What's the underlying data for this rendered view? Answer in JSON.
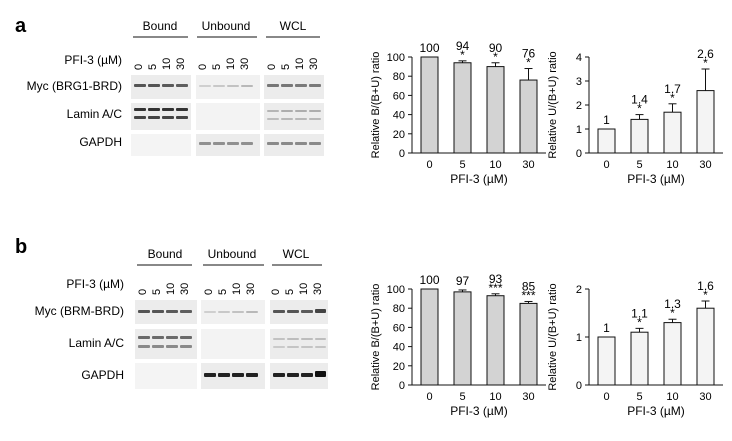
{
  "figure": {
    "panels": [
      {
        "letter": "a",
        "blot": {
          "groups": [
            "Bound",
            "Unbound",
            "WCL"
          ],
          "treatment_label": "PFI-3 (µM)",
          "doses": [
            "0",
            "5",
            "10",
            "30"
          ],
          "rows": [
            "Myc (BRG1-BRD)",
            "Lamin A/C",
            "GAPDH"
          ]
        }
      },
      {
        "letter": "b",
        "blot": {
          "groups": [
            "Bound",
            "Unbound",
            "WCL"
          ],
          "treatment_label": "PFI-3 (µM)",
          "doses": [
            "0",
            "5",
            "10",
            "30"
          ],
          "rows": [
            "Myc (BRM-BRD)",
            "Lamin A/C",
            "GAPDH"
          ]
        }
      }
    ]
  },
  "chart_data": [
    {
      "type": "bar",
      "categories": [
        "0",
        "5",
        "10",
        "30"
      ],
      "values": [
        100,
        94,
        90,
        76
      ],
      "errors": [
        0,
        2,
        4,
        12
      ],
      "value_labels": [
        "100",
        "94",
        "90",
        "76"
      ],
      "significance": [
        "",
        "*",
        "*",
        "*"
      ],
      "xlabel": "PFI-3 (µM)",
      "ylabel": "Relative  B/(B+U) ratio",
      "yticks": [
        "0",
        "20",
        "40",
        "60",
        "80",
        "100"
      ],
      "ylim": [
        0,
        100
      ],
      "bar_color": "#d3d3d3"
    },
    {
      "type": "bar",
      "categories": [
        "0",
        "5",
        "10",
        "30"
      ],
      "values": [
        1,
        1.4,
        1.7,
        2.6
      ],
      "errors": [
        0,
        0.2,
        0.35,
        0.9
      ],
      "value_labels": [
        "1",
        "1.4",
        "1.7",
        "2.6"
      ],
      "significance": [
        "",
        "*",
        "*",
        "*"
      ],
      "xlabel": "PFI-3 (µM)",
      "ylabel": "Relative  U/(B+U) ratio",
      "yticks": [
        "0",
        "1",
        "2",
        "3",
        "4"
      ],
      "ylim": [
        0,
        4
      ],
      "bar_color": "#f4f4f4"
    },
    {
      "type": "bar",
      "categories": [
        "0",
        "5",
        "10",
        "30"
      ],
      "values": [
        100,
        97,
        93,
        85
      ],
      "errors": [
        0,
        2,
        2,
        2
      ],
      "value_labels": [
        "100",
        "97",
        "93",
        "85"
      ],
      "significance": [
        "",
        "",
        "***",
        "***"
      ],
      "xlabel": "PFI-3 (µM)",
      "ylabel": "Relative  B/(B+U) ratio",
      "yticks": [
        "0",
        "20",
        "40",
        "60",
        "80",
        "100"
      ],
      "ylim": [
        0,
        100
      ],
      "bar_color": "#d3d3d3"
    },
    {
      "type": "bar",
      "categories": [
        "0",
        "5",
        "10",
        "30"
      ],
      "values": [
        1,
        1.1,
        1.3,
        1.6
      ],
      "errors": [
        0,
        0.08,
        0.07,
        0.15
      ],
      "value_labels": [
        "1",
        "1.1",
        "1.3",
        "1.6"
      ],
      "significance": [
        "",
        "*",
        "*",
        "*"
      ],
      "xlabel": "PFI-3 (µM)",
      "ylabel": "Relative  U/(B+U) ratio",
      "yticks": [
        "0",
        "1",
        "2"
      ],
      "ylim": [
        0,
        2
      ],
      "bar_color": "#f4f4f4"
    }
  ]
}
